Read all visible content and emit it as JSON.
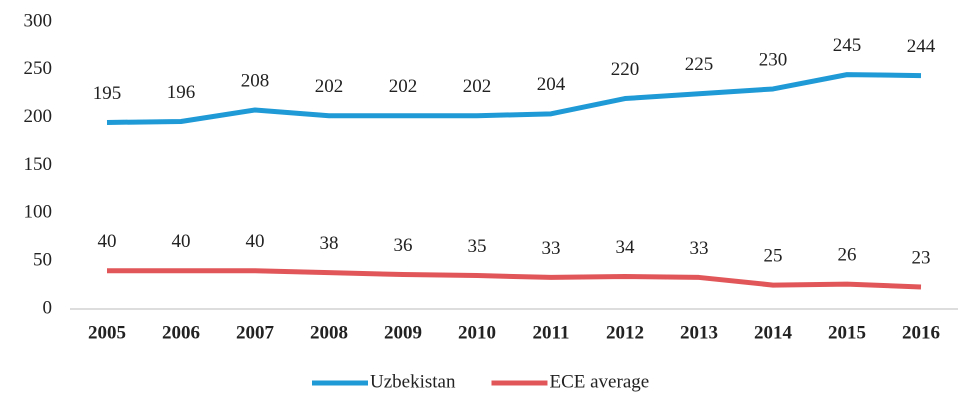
{
  "chart_data": {
    "type": "line",
    "categories": [
      "2005",
      "2006",
      "2007",
      "2008",
      "2009",
      "2010",
      "2011",
      "2012",
      "2013",
      "2014",
      "2015",
      "2016"
    ],
    "series": [
      {
        "name": "Uzbekistan",
        "color": "#1f9ad6",
        "values": [
          195,
          196,
          208,
          202,
          202,
          202,
          204,
          220,
          225,
          230,
          245,
          244
        ]
      },
      {
        "name": "ECE average",
        "color": "#e15759",
        "values": [
          40,
          40,
          40,
          38,
          36,
          35,
          33,
          34,
          33,
          25,
          26,
          23
        ]
      }
    ],
    "ylim": [
      0,
      300
    ],
    "yticks": [
      0,
      50,
      100,
      150,
      200,
      250,
      300
    ],
    "grid": false,
    "legend": "bottom"
  }
}
